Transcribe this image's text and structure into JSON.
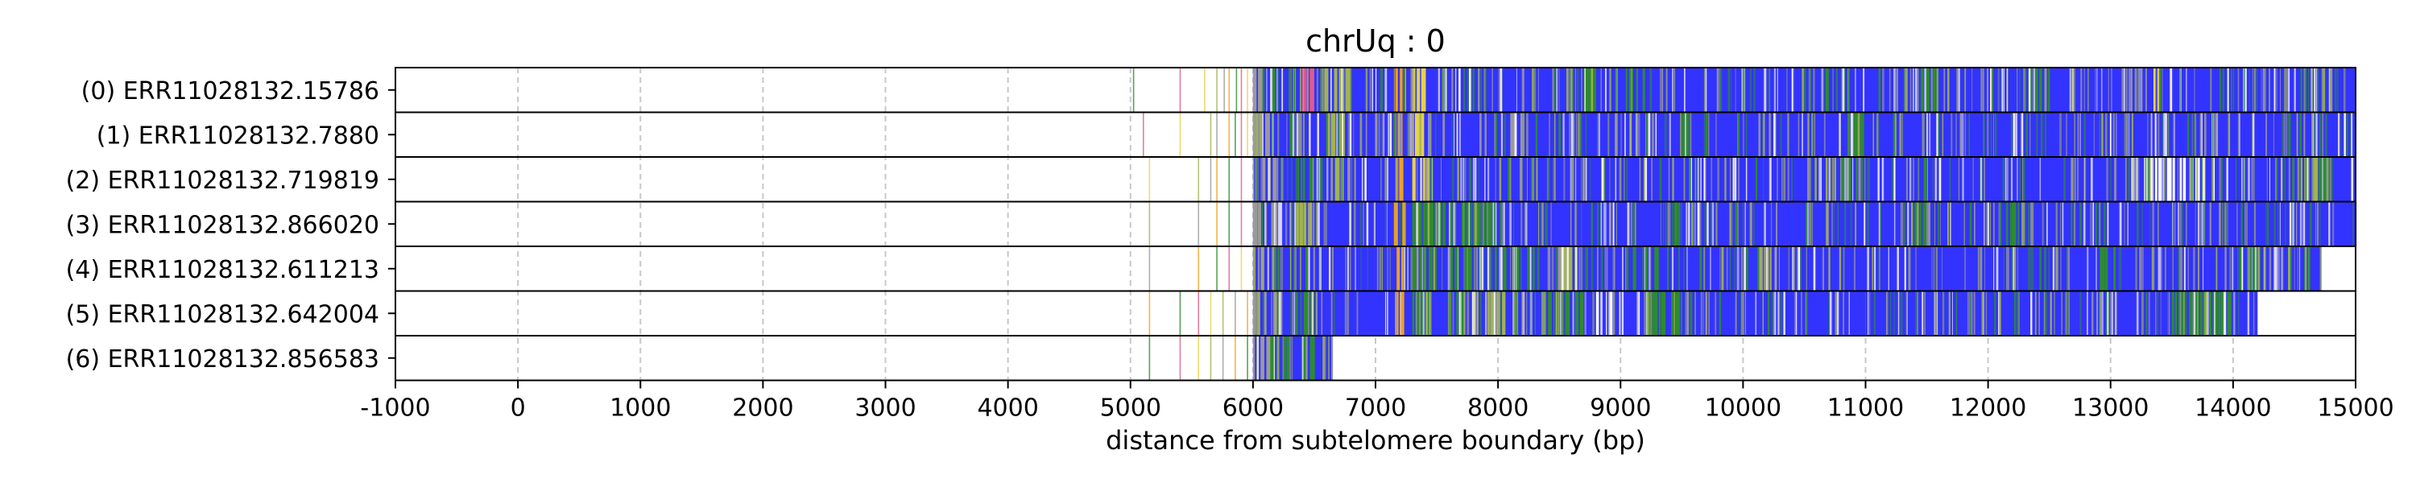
{
  "chart_data": {
    "type": "heatmap",
    "title": "chrUq : 0",
    "xlabel": "distance from subtelomere boundary (bp)",
    "ylabel": "",
    "xlim": [
      -1000,
      15000
    ],
    "xticks": [
      -1000,
      0,
      1000,
      2000,
      3000,
      4000,
      5000,
      6000,
      7000,
      8000,
      9000,
      10000,
      11000,
      12000,
      13000,
      14000,
      15000
    ],
    "grid": true,
    "colors": {
      "main": "#3333ff",
      "green": "#2e8b2e",
      "yellow": "#e6d24a",
      "olive": "#a0b450",
      "gray": "#9a9a9a",
      "pink": "#e05a8a",
      "orange": "#f0a020",
      "white": "#ffffff"
    },
    "reads": [
      {
        "label": "(0) ERR11028132.15786",
        "dense_start": 6000,
        "end": 15000,
        "sparse_marks": [
          5020,
          5400,
          5600,
          5700,
          5760,
          5800,
          5860,
          5900,
          5950
        ],
        "features": [
          {
            "start": 6000,
            "end": 6150,
            "color": "gray"
          },
          {
            "start": 6150,
            "end": 6350,
            "color": "green"
          },
          {
            "start": 6400,
            "end": 6500,
            "color": "pink"
          },
          {
            "start": 6550,
            "end": 6800,
            "color": "olive"
          },
          {
            "start": 7150,
            "end": 7250,
            "color": "orange"
          },
          {
            "start": 7300,
            "end": 7420,
            "color": "yellow"
          },
          {
            "start": 8700,
            "end": 8800,
            "color": "green"
          },
          {
            "start": 9000,
            "end": 9200,
            "color": "green"
          },
          {
            "start": 10550,
            "end": 10700,
            "color": "green"
          },
          {
            "start": 11450,
            "end": 11600,
            "color": "green"
          },
          {
            "start": 12300,
            "end": 12450,
            "color": "green"
          },
          {
            "start": 13350,
            "end": 13450,
            "color": "yellow"
          },
          {
            "start": 14550,
            "end": 14650,
            "color": "green"
          }
        ]
      },
      {
        "label": "(1) ERR11028132.7880",
        "dense_start": 6000,
        "end": 15000,
        "sparse_marks": [
          5100,
          5400,
          5650,
          5700,
          5800,
          5850,
          5900,
          5950
        ],
        "features": [
          {
            "start": 6000,
            "end": 6200,
            "color": "gray"
          },
          {
            "start": 6300,
            "end": 6450,
            "color": "green"
          },
          {
            "start": 6600,
            "end": 6750,
            "color": "olive"
          },
          {
            "start": 7150,
            "end": 7250,
            "color": "orange"
          },
          {
            "start": 7300,
            "end": 7400,
            "color": "yellow"
          },
          {
            "start": 8100,
            "end": 8200,
            "color": "gray"
          },
          {
            "start": 9500,
            "end": 9600,
            "color": "green"
          },
          {
            "start": 10900,
            "end": 11000,
            "color": "green"
          }
        ]
      },
      {
        "label": "(2) ERR11028132.719819",
        "dense_start": 6000,
        "end": 15000,
        "sparse_marks": [
          5150,
          5550,
          5650,
          5700,
          5800,
          5900
        ],
        "features": [
          {
            "start": 6000,
            "end": 6200,
            "color": "gray"
          },
          {
            "start": 6350,
            "end": 6500,
            "color": "green"
          },
          {
            "start": 6600,
            "end": 6750,
            "color": "olive"
          },
          {
            "start": 7150,
            "end": 7250,
            "color": "orange"
          },
          {
            "start": 7300,
            "end": 7450,
            "color": "yellow"
          },
          {
            "start": 10800,
            "end": 10950,
            "color": "green"
          },
          {
            "start": 11450,
            "end": 11550,
            "color": "green"
          },
          {
            "start": 13100,
            "end": 13850,
            "color": "white"
          },
          {
            "start": 14550,
            "end": 14700,
            "color": "olive"
          },
          {
            "start": 14700,
            "end": 14800,
            "color": "green"
          }
        ]
      },
      {
        "label": "(3) ERR11028132.866020",
        "dense_start": 6000,
        "end": 15000,
        "sparse_marks": [
          5150,
          5550,
          5700,
          5800,
          5900
        ],
        "features": [
          {
            "start": 6000,
            "end": 6200,
            "color": "gray"
          },
          {
            "start": 6350,
            "end": 6500,
            "color": "olive"
          },
          {
            "start": 7150,
            "end": 7250,
            "color": "orange"
          },
          {
            "start": 7300,
            "end": 7600,
            "color": "green"
          },
          {
            "start": 7600,
            "end": 8000,
            "color": "green"
          },
          {
            "start": 8500,
            "end": 8600,
            "color": "gray"
          },
          {
            "start": 9400,
            "end": 9500,
            "color": "green"
          },
          {
            "start": 11400,
            "end": 11500,
            "color": "green"
          },
          {
            "start": 12100,
            "end": 12250,
            "color": "green"
          }
        ]
      },
      {
        "label": "(4) ERR11028132.611213",
        "dense_start": 6000,
        "end": 14720,
        "sparse_marks": [
          5150,
          5550,
          5700,
          5800,
          5900
        ],
        "features": [
          {
            "start": 6000,
            "end": 6200,
            "color": "gray"
          },
          {
            "start": 6300,
            "end": 6450,
            "color": "green"
          },
          {
            "start": 7150,
            "end": 7250,
            "color": "orange"
          },
          {
            "start": 7300,
            "end": 7500,
            "color": "green"
          },
          {
            "start": 7600,
            "end": 8300,
            "color": "green"
          },
          {
            "start": 8500,
            "end": 8650,
            "color": "olive"
          },
          {
            "start": 9100,
            "end": 9400,
            "color": "green"
          },
          {
            "start": 10100,
            "end": 10300,
            "color": "olive"
          },
          {
            "start": 12900,
            "end": 13050,
            "color": "green"
          },
          {
            "start": 14050,
            "end": 14200,
            "color": "green"
          }
        ]
      },
      {
        "label": "(5) ERR11028132.642004",
        "dense_start": 6000,
        "end": 14200,
        "sparse_marks": [
          5150,
          5400,
          5550,
          5650,
          5750,
          5850,
          5950
        ],
        "features": [
          {
            "start": 6000,
            "end": 6250,
            "color": "gray"
          },
          {
            "start": 6350,
            "end": 6500,
            "color": "green"
          },
          {
            "start": 7150,
            "end": 7250,
            "color": "orange"
          },
          {
            "start": 7300,
            "end": 7700,
            "color": "green"
          },
          {
            "start": 7700,
            "end": 8200,
            "color": "olive"
          },
          {
            "start": 8300,
            "end": 8700,
            "color": "green"
          },
          {
            "start": 8800,
            "end": 9000,
            "color": "white"
          },
          {
            "start": 9200,
            "end": 9500,
            "color": "green"
          },
          {
            "start": 13500,
            "end": 14000,
            "color": "green"
          }
        ]
      },
      {
        "label": "(6) ERR11028132.856583",
        "dense_start": 6000,
        "end": 6650,
        "sparse_marks": [
          5150,
          5400,
          5550,
          5650,
          5750,
          5850,
          5950
        ],
        "features": [
          {
            "start": 6000,
            "end": 6150,
            "color": "gray"
          },
          {
            "start": 6150,
            "end": 6300,
            "color": "green"
          },
          {
            "start": 6400,
            "end": 6500,
            "color": "green"
          }
        ]
      }
    ]
  }
}
